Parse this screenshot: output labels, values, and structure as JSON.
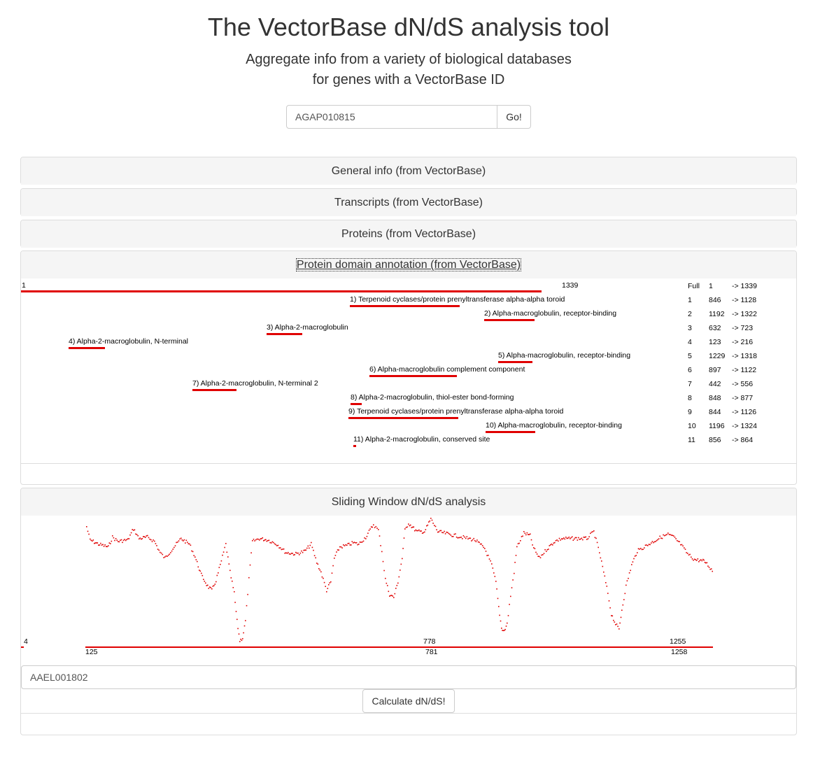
{
  "header": {
    "title": "The VectorBase dN/dS analysis tool",
    "subtitle_line1": "Aggregate info from a variety of biological databases",
    "subtitle_line2": "for genes with a VectorBase ID"
  },
  "search": {
    "value": "AGAP010815",
    "go_label": "Go!"
  },
  "panels": {
    "general": "General info (from VectorBase)",
    "transcripts": "Transcripts (from VectorBase)",
    "proteins": "Proteins (from VectorBase)",
    "domains": "Protein domain annotation (from VectorBase)",
    "sliding": "Sliding Window dN/dS analysis"
  },
  "colors": {
    "accent": "#e00000",
    "panel_heading": "#f5f5f5",
    "border": "#dddddd"
  },
  "domain_annotation": {
    "full_start": "1",
    "full_end": "1339",
    "domains": [
      {
        "label": "1) Terpenoid cyclases/protein prenyltransferase alpha-alpha toroid",
        "start": 846,
        "end": 1128
      },
      {
        "label": "2) Alpha-macroglobulin, receptor-binding",
        "start": 1192,
        "end": 1322
      },
      {
        "label": "3) Alpha-2-macroglobulin",
        "start": 632,
        "end": 723
      },
      {
        "label": "4) Alpha-2-macroglobulin, N-terminal",
        "start": 123,
        "end": 216
      },
      {
        "label": "5) Alpha-macroglobulin, receptor-binding",
        "start": 1229,
        "end": 1318
      },
      {
        "label": "6) Alpha-macroglobulin complement component",
        "start": 897,
        "end": 1122
      },
      {
        "label": "7) Alpha-2-macroglobulin, N-terminal 2",
        "start": 442,
        "end": 556
      },
      {
        "label": "8) Alpha-2-macroglobulin, thiol-ester bond-forming",
        "start": 848,
        "end": 877
      },
      {
        "label": "9) Terpenoid cyclases/protein prenyltransferase alpha-alpha toroid",
        "start": 844,
        "end": 1126
      },
      {
        "label": "10) Alpha-macroglobulin, receptor-binding",
        "start": 1196,
        "end": 1324
      },
      {
        "label": "11) Alpha-2-macroglobulin, conserved site",
        "start": 856,
        "end": 864
      }
    ],
    "table": [
      {
        "id": "Full",
        "start": "1",
        "end": "-> 1339"
      },
      {
        "id": "1",
        "start": "846",
        "end": "-> 1128"
      },
      {
        "id": "2",
        "start": "1192",
        "end": "-> 1322"
      },
      {
        "id": "3",
        "start": "632",
        "end": "-> 723"
      },
      {
        "id": "4",
        "start": "123",
        "end": "-> 216"
      },
      {
        "id": "5",
        "start": "1229",
        "end": "-> 1318"
      },
      {
        "id": "6",
        "start": "897",
        "end": "-> 1122"
      },
      {
        "id": "7",
        "start": "442",
        "end": "-> 556"
      },
      {
        "id": "8",
        "start": "848",
        "end": "-> 877"
      },
      {
        "id": "9",
        "start": "844",
        "end": "-> 1126"
      },
      {
        "id": "10",
        "start": "1196",
        "end": "-> 1324"
      },
      {
        "id": "11",
        "start": "856",
        "end": "-> 864"
      }
    ]
  },
  "sliding_window": {
    "axis_labels_top": [
      "4",
      "778",
      "1255"
    ],
    "axis_labels_bottom": [
      "125",
      "781",
      "1258"
    ],
    "comparison_gene": "AAEL001802",
    "calculate_label": "Calculate dN/dS!"
  }
}
